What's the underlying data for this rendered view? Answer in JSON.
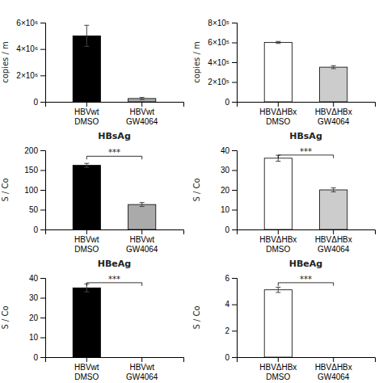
{
  "chart_data": [
    {
      "type": "bar",
      "ylabel": "copies / m",
      "categories": [
        "HBVwt\nDMSO",
        "HBVwt\nGW4064"
      ],
      "values": [
        5000000,
        250000
      ],
      "errors": [
        800000,
        80000
      ],
      "colors": [
        "black",
        "#aaaaaa"
      ],
      "ylim": [
        0,
        6000000
      ],
      "yticks": [
        0,
        {
          "value": 2000000,
          "label": "2×10⁶"
        },
        {
          "value": 4000000,
          "label": "4×10⁶"
        },
        {
          "value": 6000000,
          "label": "6×10⁶"
        }
      ],
      "grid": false
    },
    {
      "type": "bar",
      "ylabel": "copies / m",
      "categories": [
        "HBVΔHBx\nDMSO",
        "HBVΔHBx\nGW4064"
      ],
      "values": [
        600000,
        350000
      ],
      "errors": [
        10000,
        15000
      ],
      "colors": [
        "white",
        "#cccccc"
      ],
      "ylim": [
        0,
        800000
      ],
      "yticks": [
        0,
        {
          "value": 200000,
          "label": "2×10⁵"
        },
        {
          "value": 400000,
          "label": "4×10⁵"
        },
        {
          "value": 600000,
          "label": "6×10⁵"
        },
        {
          "value": 800000,
          "label": "8×10⁵"
        }
      ],
      "grid": false
    },
    {
      "type": "bar",
      "title": "HBsAg",
      "ylabel": "S / Co",
      "categories": [
        "HBVwt\nDMSO",
        "HBVwt\nGW4064"
      ],
      "values": [
        162,
        63
      ],
      "errors": [
        5,
        5
      ],
      "colors": [
        "black",
        "#aaaaaa"
      ],
      "ylim": [
        0,
        200
      ],
      "yticks": [
        0,
        50,
        100,
        150,
        200
      ],
      "annotations": [
        {
          "text": "***",
          "x": [
            "HBVwt\nDMSO",
            "HBVwt\nGW4064"
          ],
          "y": 185
        }
      ],
      "grid": false
    },
    {
      "type": "bar",
      "title": "HBsAg",
      "ylabel": "S / Co",
      "categories": [
        "HBVΔHBx\nDMSO",
        "HBVΔHBx\nGW4064"
      ],
      "values": [
        36,
        20
      ],
      "errors": [
        1.5,
        1.0
      ],
      "colors": [
        "white",
        "#cccccc"
      ],
      "ylim": [
        0,
        40
      ],
      "yticks": [
        0,
        10,
        20,
        30,
        40
      ],
      "annotations": [
        {
          "text": "***",
          "x": [
            "HBVΔHBx\nDMSO",
            "HBVΔHBx\nGW4064"
          ],
          "y": 37.6
        }
      ],
      "grid": false
    },
    {
      "type": "bar",
      "title": "HBeAg",
      "ylabel": "S / Co",
      "categories": [
        "HBVwt\nDMSO",
        "HBVwt\nGW4064"
      ],
      "values": [
        35,
        0
      ],
      "errors": [
        2.0,
        0
      ],
      "colors": [
        "black",
        "#aaaaaa"
      ],
      "ylim": [
        0,
        40
      ],
      "yticks": [
        0,
        10,
        20,
        30,
        40
      ],
      "annotations": [
        {
          "text": "***",
          "x": [
            "HBVwt\nDMSO",
            "HBVwt\nGW4064"
          ],
          "y": 37.6
        }
      ],
      "grid": false
    },
    {
      "type": "bar",
      "title": "HBeAg",
      "ylabel": "S / Co",
      "categories": [
        "HBVΔHBx\nDMSO",
        "HBVΔHBx\nGW4064"
      ],
      "values": [
        5.1,
        0
      ],
      "errors": [
        0.2,
        0
      ],
      "colors": [
        "white",
        "#cccccc"
      ],
      "ylim": [
        0,
        6
      ],
      "yticks": [
        0,
        2,
        4,
        6
      ],
      "annotations": [
        {
          "text": "***",
          "x": [
            "HBVΔHBx\nDMSO",
            "HBVΔHBx\nGW4064"
          ],
          "y": 5.64
        }
      ],
      "grid": false
    }
  ]
}
